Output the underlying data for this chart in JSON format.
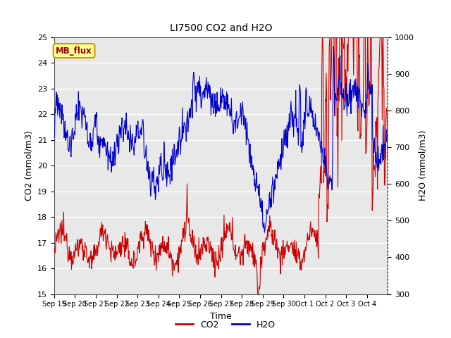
{
  "title": "LI7500 CO2 and H2O",
  "xlabel": "Time",
  "ylabel_left": "CO2 (mmol/m3)",
  "ylabel_right": "H2O (mmol/m3)",
  "ylim_left": [
    15.0,
    25.0
  ],
  "ylim_right": [
    300,
    1000
  ],
  "yticks_left": [
    15.0,
    16.0,
    17.0,
    18.0,
    19.0,
    20.0,
    21.0,
    22.0,
    23.0,
    24.0,
    25.0
  ],
  "yticks_right": [
    300,
    400,
    500,
    600,
    700,
    800,
    900,
    1000
  ],
  "xtick_labels": [
    "Sep 19",
    "Sep 20",
    "Sep 21",
    "Sep 22",
    "Sep 23",
    "Sep 24",
    "Sep 25",
    "Sep 26",
    "Sep 27",
    "Sep 28",
    "Sep 29",
    "Sep 30",
    "Oct 1",
    "Oct 2",
    "Oct 3",
    "Oct 4"
  ],
  "co2_color": "#cc0000",
  "h2o_color": "#0000cc",
  "background_color": "#e8e8e8",
  "fig_background": "#ffffff",
  "annotation_text": "MB_flux",
  "annotation_bg": "#ffff99",
  "annotation_border": "#cc9900",
  "legend_co2": "CO2",
  "legend_h2o": "H2O",
  "grid_color": "#ffffff"
}
